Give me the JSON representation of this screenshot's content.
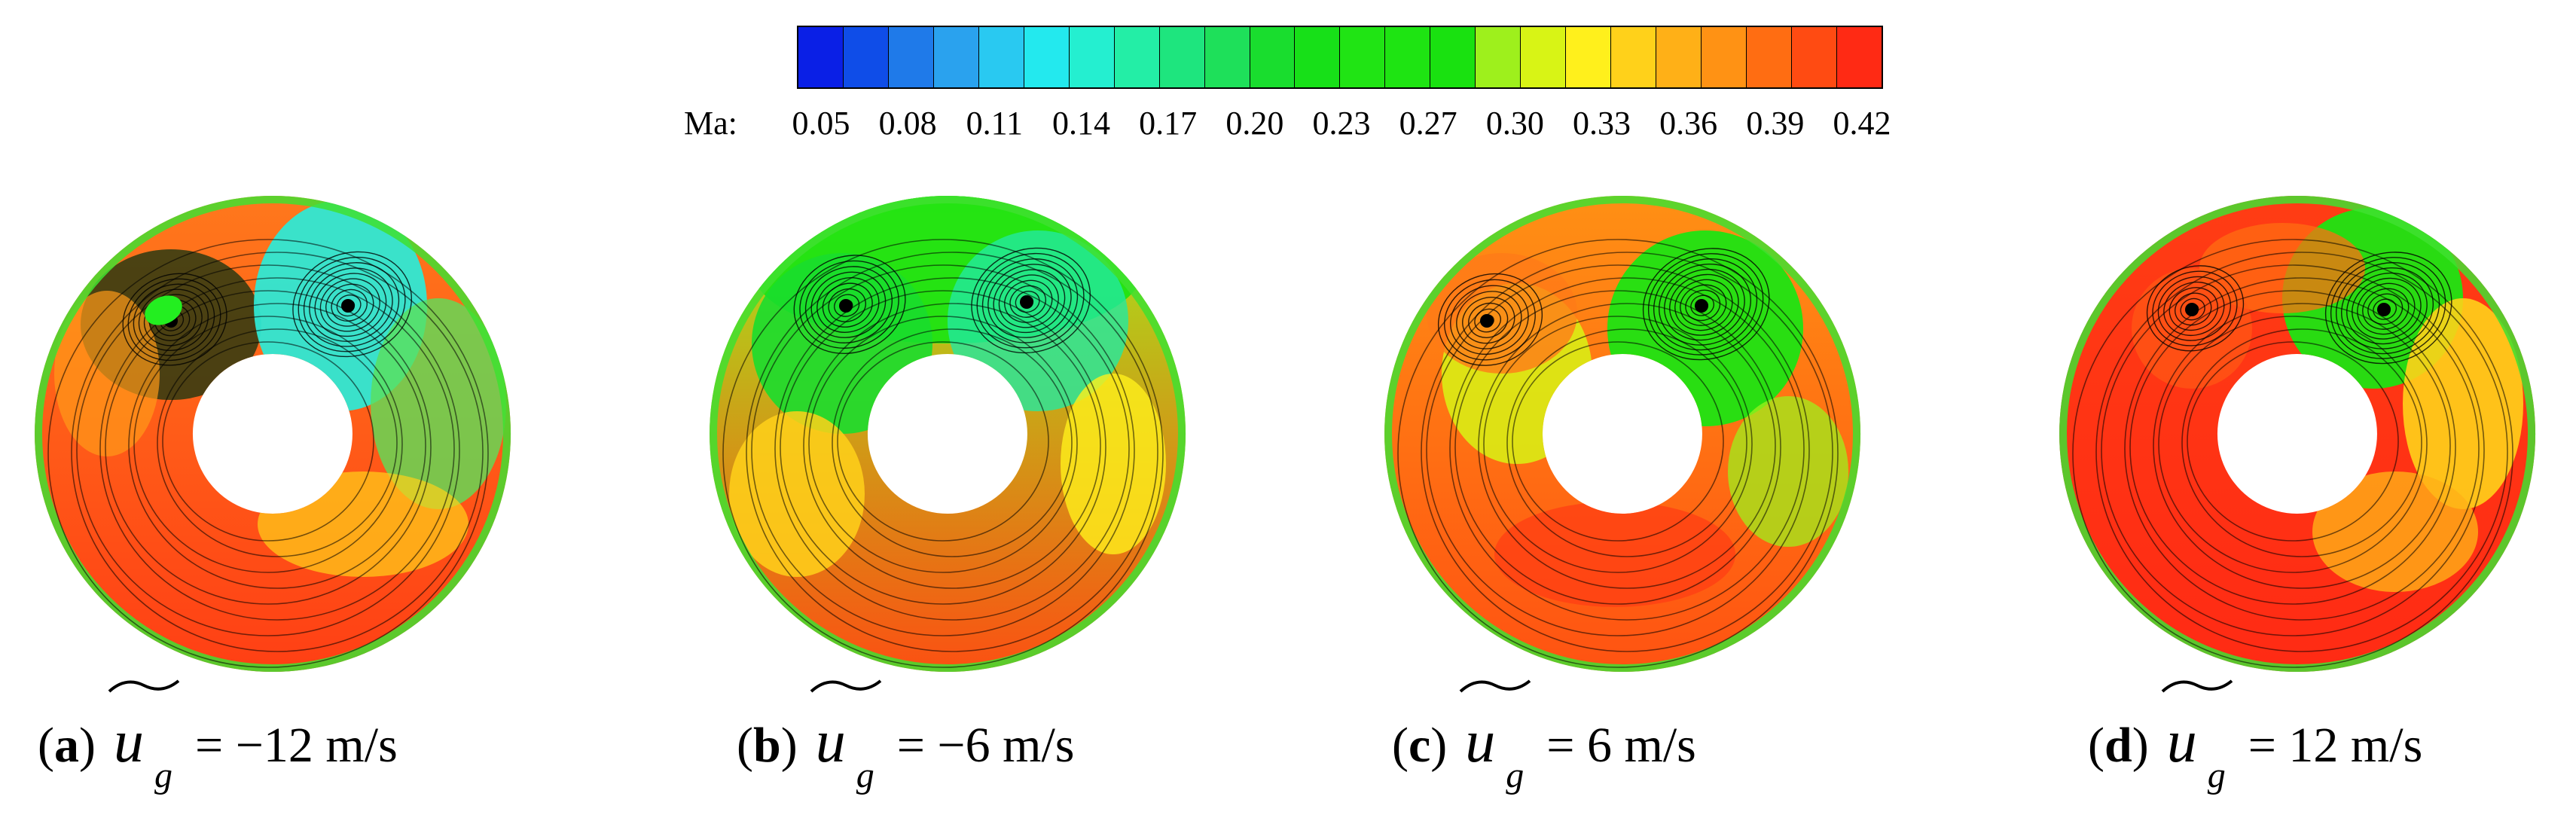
{
  "chart_data": {
    "type": "contour",
    "colorbar": {
      "label": "Ma:",
      "ticks": [
        "0.05",
        "0.08",
        "0.11",
        "0.14",
        "0.17",
        "0.20",
        "0.23",
        "0.27",
        "0.30",
        "0.33",
        "0.36",
        "0.39",
        "0.42"
      ],
      "colors": [
        "#0a1fe6",
        "#0f4de8",
        "#1f7ae9",
        "#2aa2ee",
        "#29c9f1",
        "#23e9ee",
        "#24efd0",
        "#23eea6",
        "#1ee57e",
        "#1ee05a",
        "#19dd2e",
        "#17e018",
        "#20e414",
        "#1ee412",
        "#19e110",
        "#9ef01c",
        "#d8f415",
        "#fff01c",
        "#ffd11a",
        "#ffb017",
        "#ff9214",
        "#ff6d12",
        "#ff4b12",
        "#ff2a14"
      ]
    },
    "panels": [
      {
        "letter": "a",
        "value": "= −12 m/s"
      },
      {
        "letter": "b",
        "value": "= −6 m/s"
      },
      {
        "letter": "c",
        "value": "= 6 m/s"
      },
      {
        "letter": "d",
        "value": "= 12 m/s"
      }
    ]
  },
  "caption_symbol": {
    "u": "u",
    "sub": "g"
  }
}
